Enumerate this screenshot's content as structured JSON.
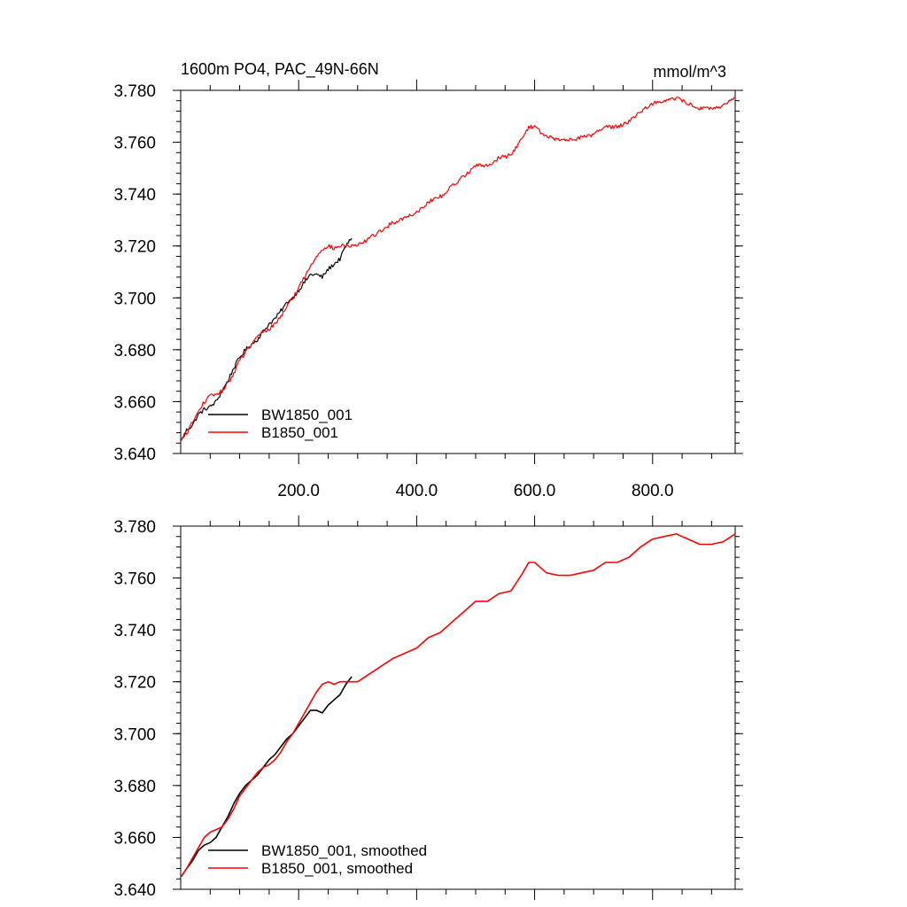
{
  "figure": {
    "title_left": "1600m PO4, PAC_49N-66N",
    "title_right": "mmol/m^3"
  },
  "chart_data": [
    {
      "type": "line",
      "title": "1600m PO4, PAC_49N-66N",
      "units": "mmol/m^3",
      "xlim": [
        0,
        940
      ],
      "ylim": [
        3.64,
        3.78
      ],
      "xticks": [
        200,
        400,
        600,
        800
      ],
      "xtick_labels": [
        "200.0",
        "400.0",
        "600.0",
        "800.0"
      ],
      "yticks": [
        3.64,
        3.66,
        3.68,
        3.7,
        3.72,
        3.74,
        3.76,
        3.78
      ],
      "ytick_labels": [
        "3.640",
        "3.660",
        "3.680",
        "3.700",
        "3.720",
        "3.740",
        "3.760",
        "3.780"
      ],
      "legend_position": "bottom-left",
      "grid": false,
      "noisy": true,
      "series": [
        {
          "name": "BW1850_001",
          "color": "#000000",
          "x": [
            1,
            10,
            20,
            30,
            40,
            50,
            60,
            70,
            80,
            90,
            100,
            110,
            120,
            130,
            140,
            150,
            160,
            170,
            180,
            190,
            200,
            210,
            220,
            230,
            240,
            250,
            260,
            270,
            280,
            290
          ],
          "y": [
            3.645,
            3.649,
            3.651,
            3.655,
            3.657,
            3.658,
            3.66,
            3.664,
            3.668,
            3.673,
            3.677,
            3.68,
            3.682,
            3.684,
            3.687,
            3.69,
            3.692,
            3.695,
            3.698,
            3.7,
            3.703,
            3.706,
            3.709,
            3.709,
            3.708,
            3.711,
            3.713,
            3.715,
            3.72,
            3.723
          ]
        },
        {
          "name": "B1850_001",
          "color": "#ff0000",
          "x": [
            1,
            10,
            20,
            30,
            40,
            50,
            60,
            70,
            80,
            90,
            100,
            110,
            120,
            130,
            140,
            150,
            160,
            170,
            180,
            190,
            200,
            210,
            220,
            230,
            240,
            250,
            260,
            270,
            280,
            290,
            300,
            320,
            340,
            360,
            380,
            400,
            420,
            440,
            460,
            480,
            500,
            520,
            540,
            560,
            580,
            590,
            600,
            620,
            640,
            660,
            680,
            700,
            720,
            740,
            760,
            780,
            800,
            820,
            840,
            860,
            880,
            900,
            920,
            940
          ],
          "y": [
            3.645,
            3.648,
            3.652,
            3.656,
            3.66,
            3.662,
            3.663,
            3.664,
            3.667,
            3.671,
            3.676,
            3.679,
            3.682,
            3.685,
            3.687,
            3.688,
            3.69,
            3.693,
            3.697,
            3.7,
            3.704,
            3.708,
            3.712,
            3.716,
            3.719,
            3.72,
            3.719,
            3.72,
            3.72,
            3.72,
            3.72,
            3.723,
            3.726,
            3.729,
            3.731,
            3.733,
            3.737,
            3.739,
            3.743,
            3.747,
            3.751,
            3.751,
            3.754,
            3.755,
            3.762,
            3.766,
            3.766,
            3.762,
            3.761,
            3.761,
            3.762,
            3.763,
            3.766,
            3.766,
            3.768,
            3.772,
            3.775,
            3.776,
            3.777,
            3.775,
            3.773,
            3.773,
            3.774,
            3.777
          ]
        }
      ]
    },
    {
      "type": "line",
      "title": "",
      "xlim": [
        0,
        940
      ],
      "ylim": [
        3.64,
        3.78
      ],
      "xticks": [
        200,
        400,
        600,
        800
      ],
      "xtick_labels": [],
      "yticks": [
        3.64,
        3.66,
        3.68,
        3.7,
        3.72,
        3.74,
        3.76,
        3.78
      ],
      "ytick_labels": [
        "3.640",
        "3.660",
        "3.680",
        "3.700",
        "3.720",
        "3.740",
        "3.760",
        "3.780"
      ],
      "legend_position": "bottom-left",
      "grid": false,
      "noisy": false,
      "series": [
        {
          "name": "BW1850_001, smoothed",
          "color": "#000000",
          "x": [
            1,
            10,
            20,
            30,
            40,
            50,
            60,
            70,
            80,
            90,
            100,
            110,
            120,
            130,
            140,
            150,
            160,
            170,
            180,
            190,
            200,
            210,
            220,
            230,
            240,
            250,
            260,
            270,
            280,
            290
          ],
          "y": [
            3.645,
            3.648,
            3.651,
            3.655,
            3.657,
            3.658,
            3.66,
            3.664,
            3.668,
            3.673,
            3.677,
            3.68,
            3.682,
            3.684,
            3.687,
            3.69,
            3.692,
            3.695,
            3.698,
            3.7,
            3.703,
            3.706,
            3.709,
            3.709,
            3.708,
            3.711,
            3.713,
            3.715,
            3.719,
            3.722
          ]
        },
        {
          "name": "B1850_001, smoothed",
          "color": "#ff0000",
          "x": [
            1,
            10,
            20,
            30,
            40,
            50,
            60,
            70,
            80,
            90,
            100,
            110,
            120,
            130,
            140,
            150,
            160,
            170,
            180,
            190,
            200,
            210,
            220,
            230,
            240,
            250,
            260,
            270,
            280,
            290,
            300,
            320,
            340,
            360,
            380,
            400,
            420,
            440,
            460,
            480,
            500,
            520,
            540,
            560,
            580,
            590,
            600,
            620,
            640,
            660,
            680,
            700,
            720,
            740,
            760,
            780,
            800,
            820,
            840,
            860,
            880,
            900,
            920,
            940
          ],
          "y": [
            3.645,
            3.648,
            3.652,
            3.656,
            3.66,
            3.662,
            3.663,
            3.664,
            3.667,
            3.671,
            3.676,
            3.679,
            3.682,
            3.685,
            3.687,
            3.688,
            3.69,
            3.693,
            3.697,
            3.7,
            3.704,
            3.708,
            3.712,
            3.716,
            3.719,
            3.72,
            3.719,
            3.72,
            3.72,
            3.72,
            3.72,
            3.723,
            3.726,
            3.729,
            3.731,
            3.733,
            3.737,
            3.739,
            3.743,
            3.747,
            3.751,
            3.751,
            3.754,
            3.755,
            3.762,
            3.766,
            3.766,
            3.762,
            3.761,
            3.761,
            3.762,
            3.763,
            3.766,
            3.766,
            3.768,
            3.772,
            3.775,
            3.776,
            3.777,
            3.775,
            3.773,
            3.773,
            3.774,
            3.777
          ]
        }
      ]
    }
  ]
}
